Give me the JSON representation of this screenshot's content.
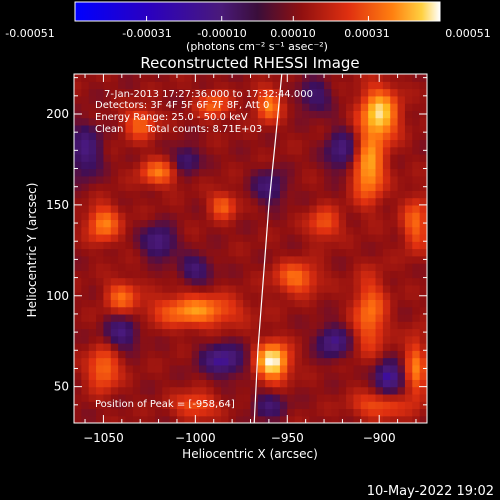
{
  "colorbar": {
    "ticks": [
      "-0.00051",
      "-0.00031",
      "-0.00010",
      "0.00010",
      "0.00031",
      "0.00051"
    ],
    "units_label": "(photons cm⁻² s⁻¹ asec⁻²)"
  },
  "annotations": {
    "time_range": "7-Jan-2013 17:27:36.000 to 17:32:44.000",
    "detectors": "Detectors: 3F 4F 5F 6F 7F 8F, Att 0",
    "energy": "Energy Range: 25.0 - 50.0 keV",
    "method": "Clean",
    "counts": "Total counts: 8.71E+03",
    "peak": "Position of Peak = [-958,64]"
  },
  "footer_date": "10-May-2022 19:02",
  "chart_data": {
    "type": "heatmap",
    "title": "Reconstructed RHESSI Image",
    "xlabel": "Heliocentric X (arcsec)",
    "ylabel": "Heliocentric Y (arcsec)",
    "xlim": [
      -1066,
      -874
    ],
    "ylim": [
      30,
      222
    ],
    "xticks": [
      -1050,
      -1000,
      -950,
      -900
    ],
    "yticks": [
      50,
      100,
      150,
      200
    ],
    "colorbar_range": [
      -0.00051,
      0.00051
    ],
    "colormap": [
      "#0000ff",
      "#3000c0",
      "#4a1a7a",
      "#3a0e5a",
      "#901010",
      "#e03010",
      "#ff7010",
      "#ffc020",
      "#ffffff"
    ],
    "limb_points": [
      [
        -968,
        30
      ],
      [
        -966,
        70
      ],
      [
        -963,
        110
      ],
      [
        -960,
        150
      ],
      [
        -956,
        190
      ],
      [
        -953,
        222
      ]
    ],
    "peak": [
      -958,
      64
    ],
    "sources": [
      {
        "x": -958,
        "y": 64,
        "sx": 6,
        "sy": 7,
        "a": 1.0
      },
      {
        "x": -900,
        "y": 200,
        "sx": 7,
        "sy": 10,
        "a": 0.85
      },
      {
        "x": -906,
        "y": 170,
        "sx": 6,
        "sy": 12,
        "a": 0.7
      },
      {
        "x": -1000,
        "y": 92,
        "sx": 16,
        "sy": 6,
        "a": 0.6
      },
      {
        "x": -945,
        "y": 110,
        "sx": 8,
        "sy": 6,
        "a": 0.5
      },
      {
        "x": -905,
        "y": 90,
        "sx": 6,
        "sy": 14,
        "a": 0.5
      },
      {
        "x": -960,
        "y": 205,
        "sx": 5,
        "sy": 6,
        "a": 0.55
      },
      {
        "x": -1050,
        "y": 140,
        "sx": 6,
        "sy": 7,
        "a": 0.55
      },
      {
        "x": -1020,
        "y": 168,
        "sx": 7,
        "sy": 5,
        "a": 0.5
      },
      {
        "x": -985,
        "y": 150,
        "sx": 5,
        "sy": 5,
        "a": 0.45
      },
      {
        "x": -1050,
        "y": 60,
        "sx": 6,
        "sy": 8,
        "a": 0.5
      },
      {
        "x": -880,
        "y": 60,
        "sx": 4,
        "sy": 12,
        "a": 0.5
      },
      {
        "x": -930,
        "y": 140,
        "sx": 6,
        "sy": 6,
        "a": 0.4
      },
      {
        "x": -1030,
        "y": 195,
        "sx": 6,
        "sy": 6,
        "a": 0.45
      },
      {
        "x": -990,
        "y": 205,
        "sx": 6,
        "sy": 5,
        "a": 0.45
      },
      {
        "x": -880,
        "y": 140,
        "sx": 5,
        "sy": 10,
        "a": 0.45
      },
      {
        "x": -1040,
        "y": 100,
        "sx": 6,
        "sy": 6,
        "a": 0.45
      },
      {
        "x": -900,
        "y": 40,
        "sx": 10,
        "sy": 5,
        "a": 0.4
      },
      {
        "x": -1000,
        "y": 40,
        "sx": 8,
        "sy": 5,
        "a": 0.4
      },
      {
        "x": -1020,
        "y": 130,
        "sx": 6,
        "sy": 6,
        "a": -0.55
      },
      {
        "x": -985,
        "y": 65,
        "sx": 8,
        "sy": 6,
        "a": -0.6
      },
      {
        "x": -1060,
        "y": 180,
        "sx": 6,
        "sy": 10,
        "a": -0.5
      },
      {
        "x": -925,
        "y": 75,
        "sx": 6,
        "sy": 6,
        "a": -0.55
      },
      {
        "x": -895,
        "y": 55,
        "sx": 5,
        "sy": 6,
        "a": -0.7
      },
      {
        "x": -960,
        "y": 160,
        "sx": 6,
        "sy": 6,
        "a": -0.45
      },
      {
        "x": -1040,
        "y": 80,
        "sx": 6,
        "sy": 6,
        "a": -0.5
      },
      {
        "x": -920,
        "y": 180,
        "sx": 6,
        "sy": 8,
        "a": -0.5
      },
      {
        "x": -1005,
        "y": 175,
        "sx": 5,
        "sy": 5,
        "a": -0.45
      },
      {
        "x": -1000,
        "y": 115,
        "sx": 6,
        "sy": 5,
        "a": -0.45
      },
      {
        "x": -960,
        "y": 40,
        "sx": 6,
        "sy": 5,
        "a": -0.4
      },
      {
        "x": -935,
        "y": 210,
        "sx": 6,
        "sy": 6,
        "a": -0.4
      }
    ]
  }
}
